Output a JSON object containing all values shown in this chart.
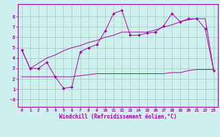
{
  "xlabel": "Windchill (Refroidissement éolien,°C)",
  "bg_color": "#cff0ee",
  "grid_color": "#99ccbb",
  "line_color": "#aa00aa",
  "spine_color": "#aa00aa",
  "x_ticks": [
    0,
    1,
    2,
    3,
    4,
    5,
    6,
    7,
    8,
    9,
    10,
    11,
    12,
    13,
    14,
    15,
    16,
    17,
    18,
    19,
    20,
    21,
    22,
    23
  ],
  "y_ticks": [
    0,
    1,
    2,
    3,
    4,
    5,
    6,
    7,
    8
  ],
  "ylim": [
    -0.7,
    9.2
  ],
  "xlim": [
    -0.5,
    23.5
  ],
  "line1_x": [
    0,
    1,
    2,
    3,
    4,
    5,
    6,
    7,
    8,
    9,
    10,
    11,
    12,
    13,
    14,
    15,
    16,
    17,
    18,
    19,
    20,
    21,
    22,
    23
  ],
  "line1_y": [
    4.8,
    3.0,
    3.0,
    3.6,
    2.2,
    1.1,
    1.2,
    4.6,
    5.0,
    5.3,
    6.6,
    8.3,
    8.6,
    6.2,
    6.2,
    6.4,
    6.5,
    7.1,
    8.3,
    7.5,
    7.8,
    7.8,
    6.8,
    2.8
  ],
  "line2_x": [
    0,
    1,
    2,
    3,
    4,
    5,
    6,
    7,
    8,
    9,
    10,
    11,
    12,
    13,
    14,
    15,
    16,
    17,
    18,
    19,
    20,
    21,
    22,
    23
  ],
  "line2_y": [
    4.8,
    3.0,
    3.5,
    4.0,
    4.3,
    4.7,
    5.0,
    5.2,
    5.5,
    5.7,
    6.0,
    6.2,
    6.5,
    6.5,
    6.5,
    6.5,
    6.7,
    7.0,
    7.2,
    7.5,
    7.7,
    7.8,
    7.8,
    2.8
  ],
  "line3_x": [
    0,
    1,
    2,
    3,
    4,
    5,
    6,
    7,
    8,
    9,
    10,
    11,
    12,
    13,
    14,
    15,
    16,
    17,
    18,
    19,
    20,
    21,
    22,
    23
  ],
  "line3_y": [
    2.2,
    2.2,
    2.2,
    2.2,
    2.2,
    2.2,
    2.2,
    2.3,
    2.4,
    2.5,
    2.5,
    2.5,
    2.5,
    2.5,
    2.5,
    2.5,
    2.5,
    2.5,
    2.6,
    2.6,
    2.8,
    2.9,
    2.9,
    2.9
  ],
  "tick_fontsize": 4.5,
  "xlabel_fontsize": 5.5
}
